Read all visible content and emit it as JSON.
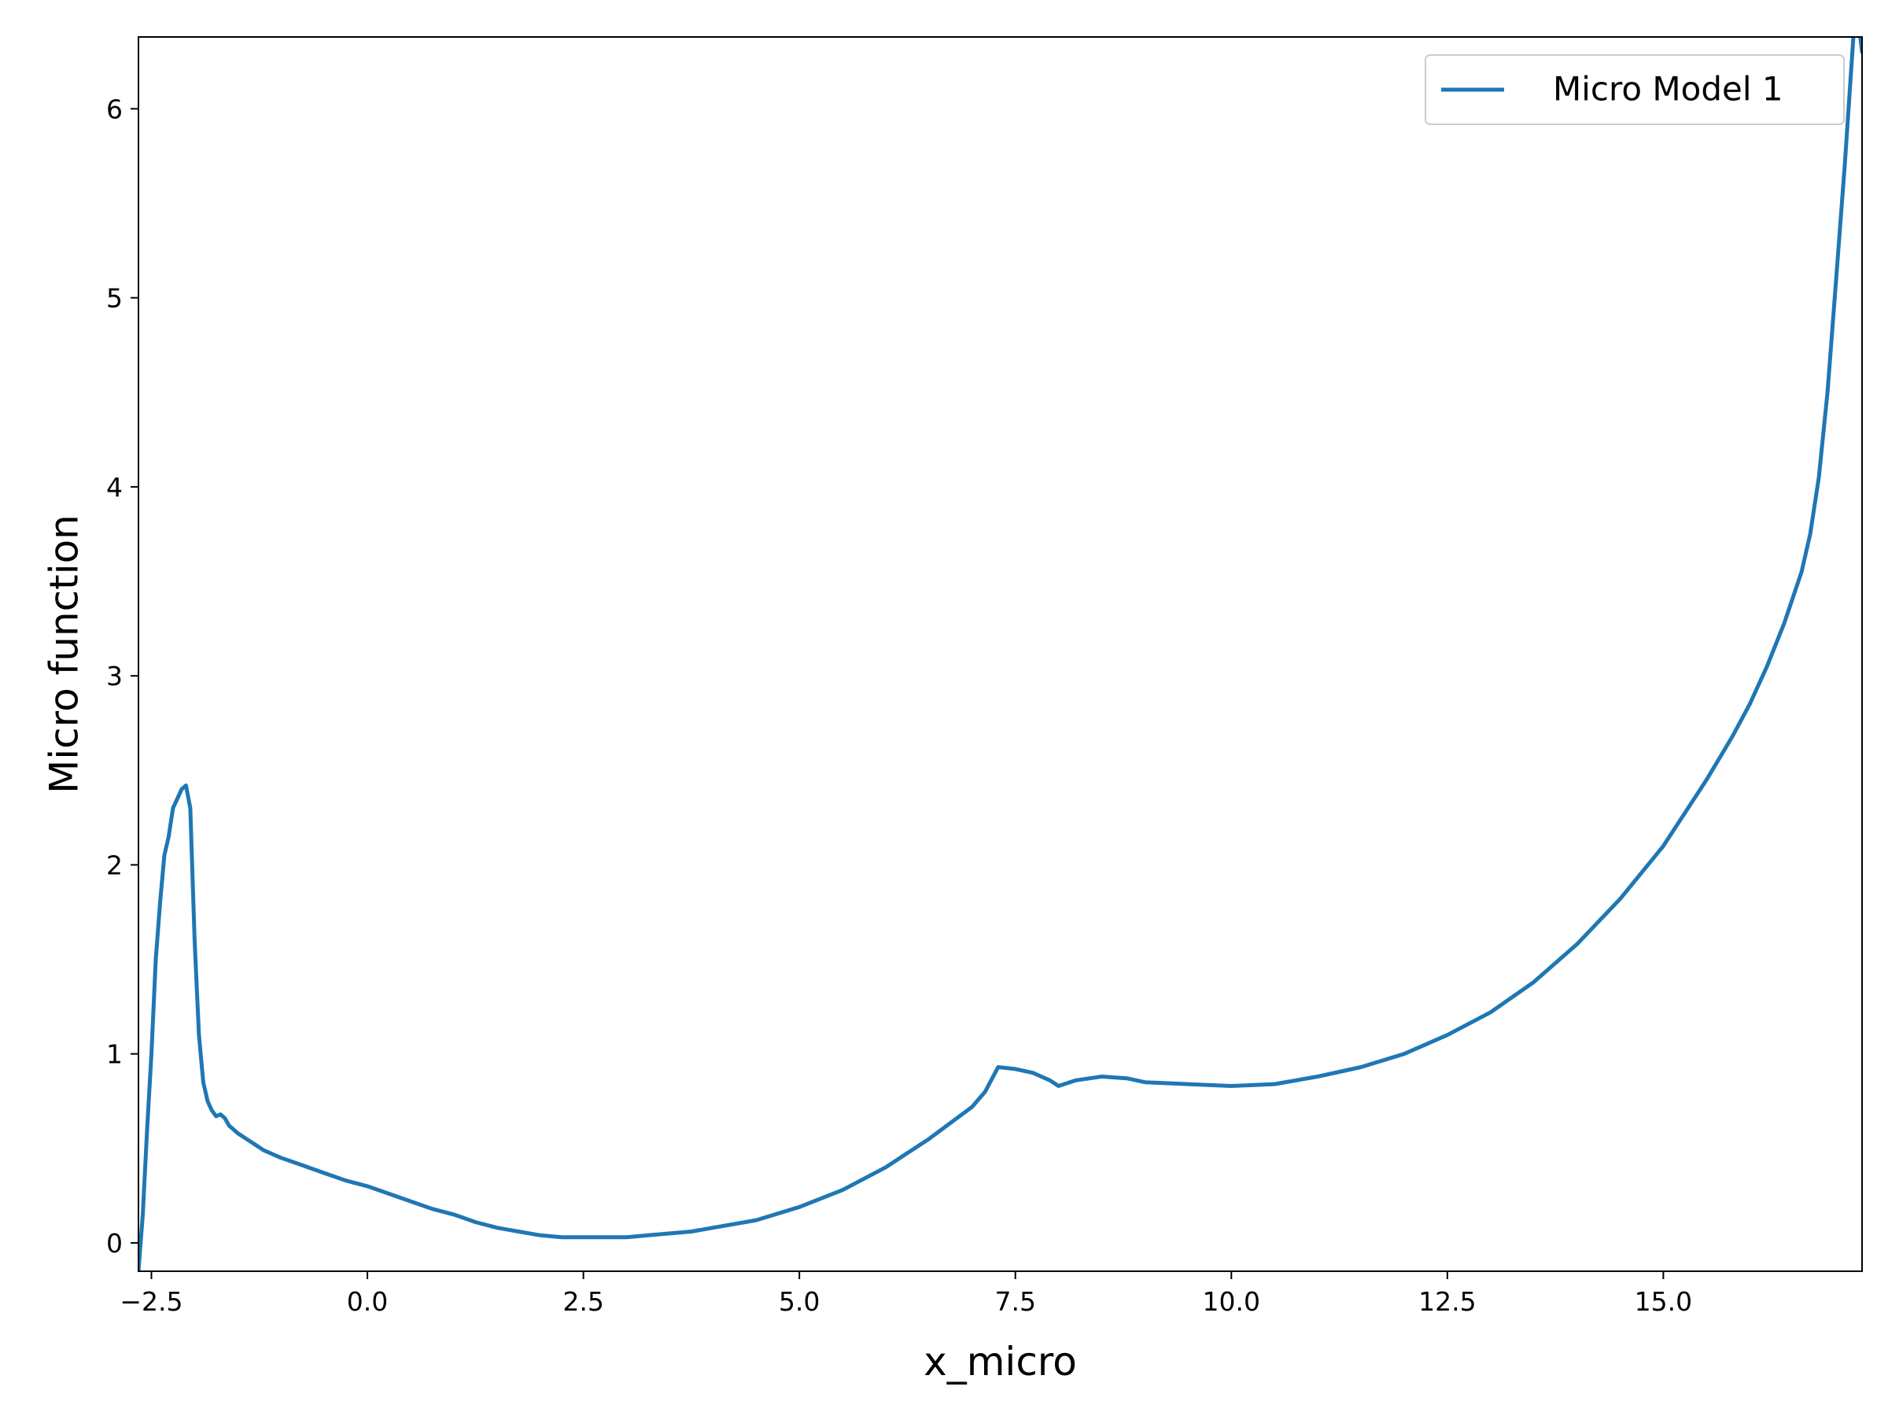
{
  "chart_data": {
    "type": "line",
    "title": "",
    "xlabel": "x_micro",
    "ylabel": "Micro function",
    "xlim": [
      -2.65,
      17.3
    ],
    "ylim": [
      -0.15,
      6.38
    ],
    "xticks": [
      -2.5,
      0.0,
      2.5,
      5.0,
      7.5,
      10.0,
      12.5,
      15.0
    ],
    "xtick_labels": [
      "−2.5",
      "0.0",
      "2.5",
      "5.0",
      "7.5",
      "10.0",
      "12.5",
      "15.0"
    ],
    "yticks": [
      0,
      1,
      2,
      3,
      4,
      5,
      6
    ],
    "ytick_labels": [
      "0",
      "1",
      "2",
      "3",
      "4",
      "5",
      "6"
    ],
    "grid": false,
    "legend": {
      "position": "upper right"
    },
    "series": [
      {
        "name": "Micro Model 1",
        "color": "#1f77b4",
        "x": [
          -2.65,
          -2.6,
          -2.55,
          -2.5,
          -2.45,
          -2.4,
          -2.35,
          -2.3,
          -2.25,
          -2.2,
          -2.15,
          -2.1,
          -2.05,
          -2.0,
          -1.95,
          -1.9,
          -1.85,
          -1.8,
          -1.75,
          -1.7,
          -1.65,
          -1.6,
          -1.55,
          -1.5,
          -1.4,
          -1.3,
          -1.2,
          -1.1,
          -1.0,
          -0.75,
          -0.5,
          -0.25,
          0.0,
          0.25,
          0.5,
          0.75,
          1.0,
          1.25,
          1.5,
          1.75,
          2.0,
          2.25,
          2.5,
          2.75,
          3.0,
          3.25,
          3.5,
          3.75,
          4.0,
          4.5,
          5.0,
          5.5,
          6.0,
          6.5,
          7.0,
          7.15,
          7.3,
          7.5,
          7.7,
          7.9,
          8.0,
          8.2,
          8.5,
          8.8,
          9.0,
          9.5,
          10.0,
          10.5,
          11.0,
          11.5,
          12.0,
          12.5,
          13.0,
          13.5,
          14.0,
          14.5,
          15.0,
          15.5,
          15.8,
          16.0,
          16.2,
          16.4,
          16.6,
          16.7,
          16.8,
          16.9,
          17.0,
          17.1,
          17.2,
          17.25,
          17.3
        ],
        "y": [
          -0.15,
          0.15,
          0.6,
          1.0,
          1.5,
          1.8,
          2.05,
          2.15,
          2.3,
          2.35,
          2.4,
          2.42,
          2.3,
          1.6,
          1.1,
          0.85,
          0.75,
          0.7,
          0.67,
          0.68,
          0.66,
          0.62,
          0.6,
          0.58,
          0.55,
          0.52,
          0.49,
          0.47,
          0.45,
          0.41,
          0.37,
          0.33,
          0.3,
          0.26,
          0.22,
          0.18,
          0.15,
          0.11,
          0.08,
          0.06,
          0.04,
          0.03,
          0.03,
          0.03,
          0.03,
          0.04,
          0.05,
          0.06,
          0.08,
          0.12,
          0.19,
          0.28,
          0.4,
          0.55,
          0.72,
          0.8,
          0.93,
          0.92,
          0.9,
          0.86,
          0.83,
          0.86,
          0.88,
          0.87,
          0.85,
          0.84,
          0.83,
          0.84,
          0.88,
          0.93,
          1.0,
          1.1,
          1.22,
          1.38,
          1.58,
          1.82,
          2.1,
          2.45,
          2.68,
          2.85,
          3.05,
          3.28,
          3.55,
          3.75,
          4.05,
          4.5,
          5.1,
          5.7,
          6.38,
          6.5,
          6.3
        ]
      }
    ]
  }
}
